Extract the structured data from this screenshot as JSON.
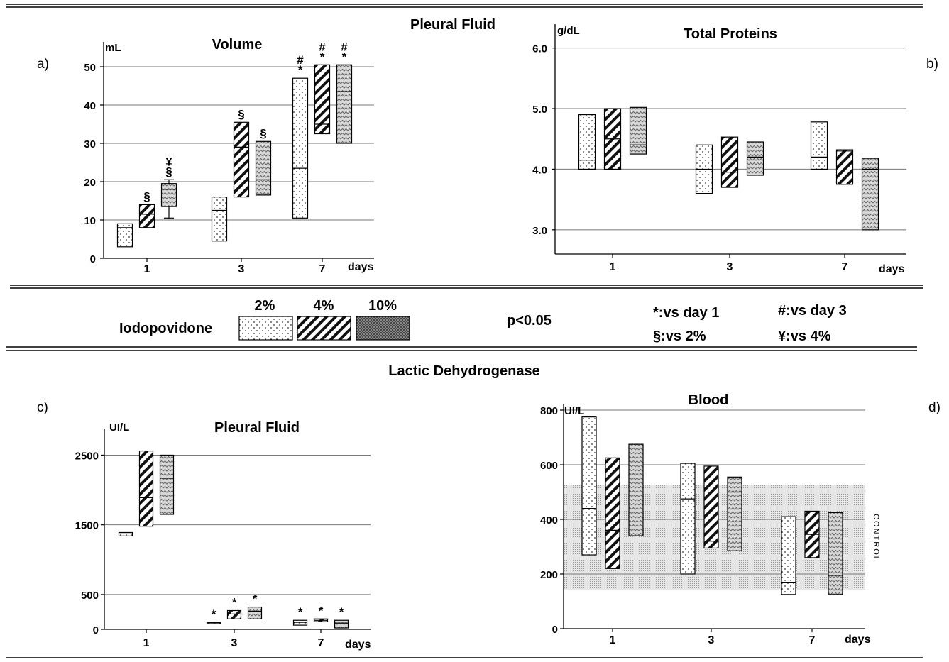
{
  "header": {
    "section_top": "Pleural Fluid",
    "section_bottom": "Lactic Dehydrogenase"
  },
  "legend": {
    "agent": "Iodopovidone",
    "concentrations": [
      "2%",
      "4%",
      "10%"
    ],
    "p_text": "p<0.05",
    "symbols": [
      "*:vs day 1",
      "#:vs day 3",
      "§:vs 2%",
      "¥:vs 4%"
    ]
  },
  "chart_data": [
    {
      "id": "a",
      "panel_label": "a)",
      "type": "box",
      "title": "Volume",
      "ylabel": "mL",
      "xlabel": "days",
      "ylim": [
        0,
        55
      ],
      "yticks": [
        0,
        10,
        20,
        30,
        40,
        50
      ],
      "categories": [
        "1",
        "3",
        "7"
      ],
      "grid": true,
      "series": [
        {
          "name": "2%",
          "pattern": "dots",
          "boxes": [
            {
              "low": 3,
              "high": 9,
              "median": 8,
              "annot": ""
            },
            {
              "low": 4.5,
              "high": 16,
              "median": 12.5,
              "annot": ""
            },
            {
              "low": 10.5,
              "high": 47,
              "median": 23.5,
              "annot": "#\n*"
            }
          ]
        },
        {
          "name": "4%",
          "pattern": "hatch",
          "boxes": [
            {
              "low": 8,
              "high": 14,
              "median": 11.5,
              "annot": "§"
            },
            {
              "low": 16,
              "high": 35.5,
              "median": 29,
              "annot": "§"
            },
            {
              "low": 32.5,
              "high": 50.5,
              "median": 35,
              "annot": "#\n*"
            }
          ]
        },
        {
          "name": "10%",
          "pattern": "zigzag",
          "boxes": [
            {
              "low": 13.5,
              "high": 19.5,
              "median": 18,
              "annot": "¥\n§",
              "whisker_low": 10.5,
              "whisker_high": 20.5
            },
            {
              "low": 16.5,
              "high": 30.5,
              "median": 20.5,
              "annot": "§"
            },
            {
              "low": 30,
              "high": 50.5,
              "median": 43.5,
              "annot": "#\n*"
            }
          ]
        }
      ]
    },
    {
      "id": "b",
      "panel_label": "b)",
      "type": "box",
      "title": "Total Proteins",
      "ylabel": "g/dL",
      "xlabel": "days",
      "ylim": [
        2.6,
        6.3
      ],
      "yticks": [
        3.0,
        4.0,
        5.0,
        6.0
      ],
      "ytick_labels": [
        "3.0",
        "4.0",
        "5.0",
        "6.0"
      ],
      "categories": [
        "1",
        "3",
        "7"
      ],
      "grid": true,
      "series": [
        {
          "name": "2%",
          "pattern": "dots",
          "boxes": [
            {
              "low": 4.0,
              "high": 4.9,
              "median": 4.15,
              "annot": ""
            },
            {
              "low": 3.6,
              "high": 4.4,
              "median": 4.0,
              "annot": ""
            },
            {
              "low": 4.0,
              "high": 4.78,
              "median": 4.2,
              "annot": ""
            }
          ]
        },
        {
          "name": "4%",
          "pattern": "hatch",
          "boxes": [
            {
              "low": 4.0,
              "high": 5.0,
              "median": 4.5,
              "annot": ""
            },
            {
              "low": 3.7,
              "high": 4.53,
              "median": 3.95,
              "annot": ""
            },
            {
              "low": 3.75,
              "high": 4.32,
              "median": 4.3,
              "annot": ""
            }
          ]
        },
        {
          "name": "10%",
          "pattern": "zigzag",
          "boxes": [
            {
              "low": 4.25,
              "high": 5.02,
              "median": 4.4,
              "annot": ""
            },
            {
              "low": 3.9,
              "high": 4.45,
              "median": 4.2,
              "annot": ""
            },
            {
              "low": 3.0,
              "high": 4.18,
              "median": 4.0,
              "annot": ""
            }
          ]
        }
      ]
    },
    {
      "id": "c",
      "panel_label": "c)",
      "type": "box",
      "title": "Pleural Fluid",
      "ylabel": "UI/L",
      "xlabel": "days",
      "ylim": [
        0,
        2800
      ],
      "yticks": [
        0,
        500,
        1500,
        2500
      ],
      "categories": [
        "1",
        "3",
        "7"
      ],
      "grid": true,
      "series": [
        {
          "name": "2%",
          "pattern": "dots",
          "boxes": [
            {
              "low": 1340,
              "high": 1390,
              "median": 1370,
              "annot": ""
            },
            {
              "low": 85,
              "high": 100,
              "median": 95,
              "annot": "*"
            },
            {
              "low": 60,
              "high": 130,
              "median": 100,
              "annot": "*"
            }
          ]
        },
        {
          "name": "4%",
          "pattern": "hatch",
          "boxes": [
            {
              "low": 1480,
              "high": 2560,
              "median": 1890,
              "annot": ""
            },
            {
              "low": 150,
              "high": 270,
              "median": 220,
              "annot": "*"
            },
            {
              "low": 110,
              "high": 150,
              "median": 130,
              "annot": "*"
            }
          ]
        },
        {
          "name": "10%",
          "pattern": "zigzag",
          "boxes": [
            {
              "low": 1650,
              "high": 2500,
              "median": 2170,
              "annot": ""
            },
            {
              "low": 150,
              "high": 320,
              "median": 260,
              "annot": "*"
            },
            {
              "low": 20,
              "high": 130,
              "median": 90,
              "annot": "*"
            }
          ]
        }
      ]
    },
    {
      "id": "d",
      "panel_label": "d)",
      "type": "box",
      "title": "Blood",
      "ylabel": "UI/L",
      "xlabel": "days",
      "ylim": [
        0,
        800
      ],
      "yticks": [
        0,
        200,
        400,
        600,
        800
      ],
      "categories": [
        "1",
        "3",
        "7"
      ],
      "grid": true,
      "control_band": {
        "low": 140,
        "high": 525,
        "label": "CONTROL"
      },
      "series": [
        {
          "name": "2%",
          "pattern": "dots",
          "boxes": [
            {
              "low": 270,
              "high": 775,
              "median": 440,
              "annot": ""
            },
            {
              "low": 200,
              "high": 605,
              "median": 475,
              "annot": ""
            },
            {
              "low": 125,
              "high": 410,
              "median": 170,
              "annot": ""
            }
          ]
        },
        {
          "name": "4%",
          "pattern": "hatch",
          "boxes": [
            {
              "low": 220,
              "high": 625,
              "median": 360,
              "annot": ""
            },
            {
              "low": 295,
              "high": 595,
              "median": 320,
              "annot": ""
            },
            {
              "low": 260,
              "high": 430,
              "median": 345,
              "annot": ""
            }
          ]
        },
        {
          "name": "10%",
          "pattern": "zigzag",
          "boxes": [
            {
              "low": 340,
              "high": 675,
              "median": 570,
              "annot": ""
            },
            {
              "low": 285,
              "high": 555,
              "median": 500,
              "annot": ""
            },
            {
              "low": 125,
              "high": 425,
              "median": 195,
              "annot": ""
            }
          ]
        }
      ]
    }
  ]
}
